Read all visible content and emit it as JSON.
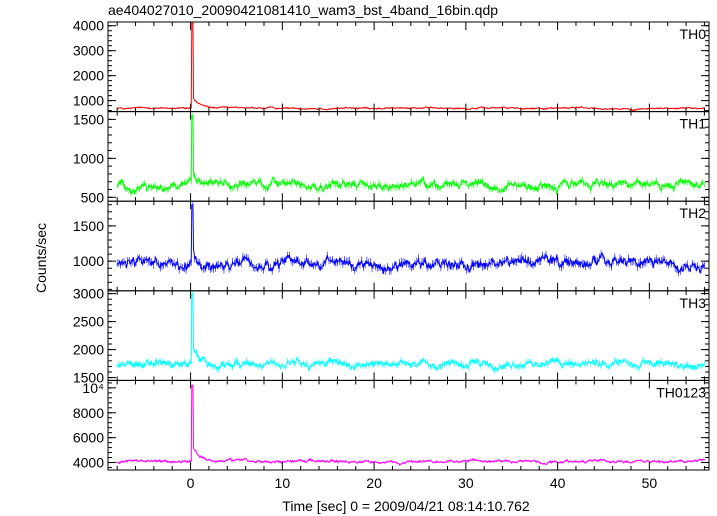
{
  "chart_data": {
    "type": "line",
    "title": "ae404027010_20090421081410_wam3_bst_4band_16bin.qdp",
    "xlabel": "Time [sec] 0 = 2009/04/21 08:14:10.762",
    "ylabel": "Counts/sec",
    "xlim": [
      -9,
      56.5
    ],
    "x_ticks": [
      0,
      10,
      20,
      30,
      40,
      50
    ],
    "x_range_data": [
      -8,
      56
    ],
    "burst_time": 0.2,
    "grid": false,
    "panels": [
      {
        "name": "TH0",
        "color": "#ff0000",
        "ylim": [
          560,
          4150
        ],
        "y_ticks": [
          1000,
          2000,
          3000,
          4000
        ],
        "y_tick_labels": [
          "1000",
          "2000",
          "3000",
          "4000"
        ],
        "baseline": 700,
        "noise": 35,
        "peak": 4100,
        "tail_amp": 450,
        "tail_decay": 0.8
      },
      {
        "name": "TH1",
        "color": "#00ff00",
        "ylim": [
          450,
          1600
        ],
        "y_ticks": [
          500,
          1000,
          1500
        ],
        "y_tick_labels": [
          "500",
          "1000",
          "1500"
        ],
        "baseline": 660,
        "noise": 60,
        "peak": 1550,
        "tail_amp": 150,
        "tail_decay": 0.6
      },
      {
        "name": "TH2",
        "color": "#0000ff",
        "ylim": [
          580,
          1850
        ],
        "y_ticks": [
          1000,
          1500
        ],
        "y_tick_labels": [
          "1000",
          "1500"
        ],
        "baseline": 960,
        "noise": 85,
        "peak": 1800,
        "tail_amp": 300,
        "tail_decay": 0.5
      },
      {
        "name": "TH3",
        "color": "#00ffff",
        "ylim": [
          1450,
          3050
        ],
        "y_ticks": [
          1500,
          2000,
          2500,
          3000
        ],
        "y_tick_labels": [
          "1500",
          "2000",
          "2500",
          "3000"
        ],
        "baseline": 1750,
        "noise": 75,
        "peak": 3000,
        "tail_amp": 400,
        "tail_decay": 0.6
      },
      {
        "name": "TH0123",
        "color": "#ff00ff",
        "ylim": [
          3400,
          10600
        ],
        "y_ticks": [
          4000,
          6000,
          8000,
          10000
        ],
        "y_tick_labels": [
          "4000",
          "6000",
          "8000",
          "10⁴"
        ],
        "baseline": 4050,
        "noise": 120,
        "peak": 10200,
        "tail_amp": 1300,
        "tail_decay": 0.7
      }
    ]
  }
}
